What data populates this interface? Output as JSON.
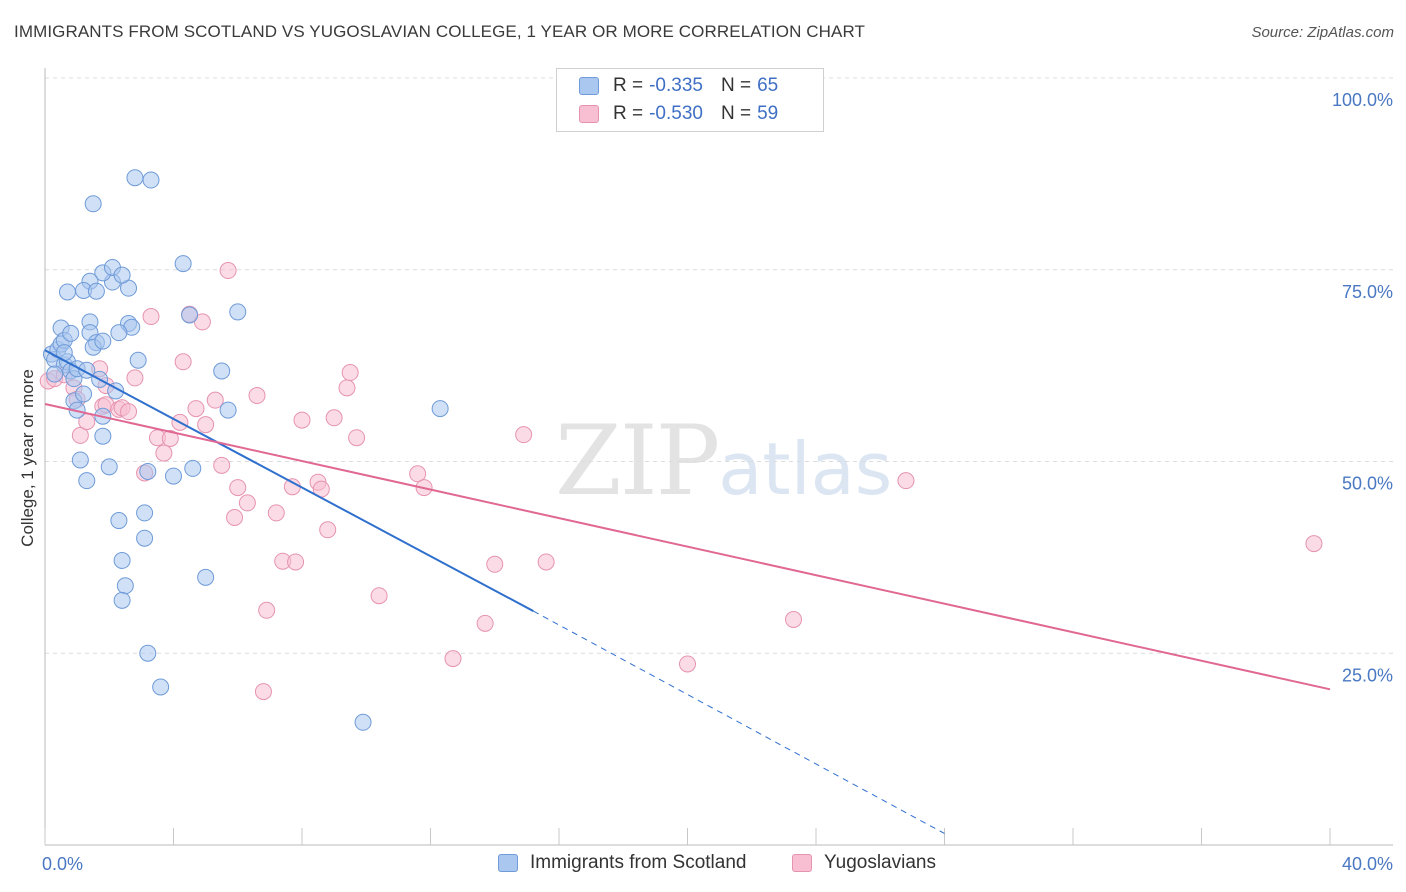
{
  "header": {
    "title": "IMMIGRANTS FROM SCOTLAND VS YUGOSLAVIAN COLLEGE, 1 YEAR OR MORE CORRELATION CHART",
    "source": "Source: ZipAtlas.com"
  },
  "watermark": {
    "zip": "ZIP",
    "atlas": "atlas"
  },
  "legend": {
    "rows": [
      {
        "r_label": "R =",
        "r_value": "-0.335",
        "n_label": "N =",
        "n_value": "65",
        "color": "#a9c7ef",
        "border": "#6f9bd8"
      },
      {
        "r_label": "R =",
        "r_value": "-0.530",
        "n_label": "N =",
        "n_value": "59",
        "color": "#f7bfd1",
        "border": "#e693b0"
      }
    ]
  },
  "bottom_legend": {
    "series1": "Immigrants from Scotland",
    "series2": "Yugoslavians"
  },
  "colors": {
    "blue_fill": "#a9c7ef",
    "blue_stroke": "#6f9bd8",
    "blue_line": "#2f6fce",
    "pink_fill": "#f7bfd1",
    "pink_stroke": "#e693b0",
    "pink_line": "#e06893"
  },
  "chart_data": {
    "type": "scatter",
    "title": "IMMIGRANTS FROM SCOTLAND VS YUGOSLAVIAN COLLEGE, 1 YEAR OR MORE CORRELATION CHART",
    "xlabel": "",
    "ylabel": "College, 1 year or more",
    "xlim": [
      0,
      40
    ],
    "ylim": [
      0,
      100
    ],
    "x_tick_labels": {
      "left": "0.0%",
      "right": "40.0%"
    },
    "y_ticks": [
      {
        "value": 100,
        "label": "100.0%"
      },
      {
        "value": 75,
        "label": "75.0%"
      },
      {
        "value": 50,
        "label": "50.0%"
      },
      {
        "value": 25,
        "label": "25.0%"
      }
    ],
    "grid": true,
    "series": [
      {
        "name": "Immigrants from Scotland",
        "r": -0.335,
        "n": 65,
        "trend": {
          "x0": 0.0,
          "y0": 64.5,
          "x1": 15.2,
          "y1": 30.5,
          "dash_x1": 28.0,
          "dash_y1": 1.5
        },
        "points": [
          [
            0.2,
            64.0
          ],
          [
            0.3,
            63.3
          ],
          [
            0.4,
            64.6
          ],
          [
            0.5,
            65.3
          ],
          [
            0.6,
            62.6
          ],
          [
            0.7,
            63.0
          ],
          [
            0.8,
            61.8
          ],
          [
            0.9,
            60.8
          ],
          [
            0.5,
            67.4
          ],
          [
            0.6,
            65.8
          ],
          [
            0.8,
            66.7
          ],
          [
            1.4,
            68.2
          ],
          [
            1.4,
            66.8
          ],
          [
            1.6,
            65.5
          ],
          [
            1.5,
            64.9
          ],
          [
            1.8,
            65.7
          ],
          [
            1.0,
            62.1
          ],
          [
            1.3,
            61.9
          ],
          [
            0.9,
            57.9
          ],
          [
            1.0,
            56.7
          ],
          [
            1.2,
            58.8
          ],
          [
            1.7,
            60.7
          ],
          [
            1.8,
            55.9
          ],
          [
            1.8,
            53.3
          ],
          [
            2.0,
            49.3
          ],
          [
            1.1,
            50.2
          ],
          [
            1.3,
            47.5
          ],
          [
            2.2,
            59.2
          ],
          [
            2.3,
            42.3
          ],
          [
            2.4,
            37.1
          ],
          [
            2.5,
            33.8
          ],
          [
            2.4,
            31.9
          ],
          [
            3.1,
            43.3
          ],
          [
            3.1,
            40.0
          ],
          [
            3.2,
            25.0
          ],
          [
            3.2,
            48.7
          ],
          [
            3.6,
            20.6
          ],
          [
            4.0,
            48.1
          ],
          [
            4.6,
            49.1
          ],
          [
            5.0,
            34.9
          ],
          [
            5.7,
            56.7
          ],
          [
            5.5,
            61.8
          ],
          [
            4.3,
            75.8
          ],
          [
            4.5,
            69.1
          ],
          [
            6.0,
            69.5
          ],
          [
            2.6,
            68.0
          ],
          [
            2.7,
            67.5
          ],
          [
            2.9,
            63.2
          ],
          [
            2.3,
            66.8
          ],
          [
            2.6,
            72.6
          ],
          [
            2.1,
            73.4
          ],
          [
            1.8,
            74.6
          ],
          [
            1.4,
            73.5
          ],
          [
            1.2,
            72.3
          ],
          [
            2.1,
            75.3
          ],
          [
            2.4,
            74.3
          ],
          [
            1.5,
            83.6
          ],
          [
            2.8,
            87.0
          ],
          [
            3.3,
            86.7
          ],
          [
            0.7,
            72.1
          ],
          [
            1.6,
            72.2
          ],
          [
            12.3,
            56.9
          ],
          [
            9.9,
            16.0
          ],
          [
            0.3,
            61.4
          ],
          [
            0.6,
            64.2
          ]
        ]
      },
      {
        "name": "Yugoslavians",
        "r": -0.53,
        "n": 59,
        "trend": {
          "x0": 0.0,
          "y0": 57.5,
          "x1": 40.0,
          "y1": 20.3
        },
        "points": [
          [
            0.1,
            60.5
          ],
          [
            0.3,
            60.8
          ],
          [
            0.6,
            61.3
          ],
          [
            0.9,
            59.6
          ],
          [
            1.0,
            58.1
          ],
          [
            1.1,
            53.4
          ],
          [
            1.3,
            55.2
          ],
          [
            1.7,
            62.1
          ],
          [
            1.8,
            57.2
          ],
          [
            1.9,
            57.4
          ],
          [
            1.9,
            59.9
          ],
          [
            2.3,
            56.8
          ],
          [
            2.4,
            57.0
          ],
          [
            2.6,
            56.5
          ],
          [
            2.8,
            60.9
          ],
          [
            3.1,
            48.5
          ],
          [
            3.3,
            68.9
          ],
          [
            3.5,
            53.1
          ],
          [
            3.7,
            51.1
          ],
          [
            3.9,
            53.0
          ],
          [
            4.2,
            55.1
          ],
          [
            4.3,
            63.0
          ],
          [
            4.5,
            69.2
          ],
          [
            4.7,
            56.9
          ],
          [
            4.9,
            68.2
          ],
          [
            5.0,
            54.8
          ],
          [
            5.3,
            58.0
          ],
          [
            5.5,
            49.5
          ],
          [
            5.7,
            74.9
          ],
          [
            5.9,
            42.7
          ],
          [
            6.0,
            46.6
          ],
          [
            6.3,
            44.6
          ],
          [
            6.6,
            58.6
          ],
          [
            6.8,
            20.0
          ],
          [
            6.9,
            30.6
          ],
          [
            7.2,
            43.3
          ],
          [
            7.4,
            37.0
          ],
          [
            7.7,
            46.7
          ],
          [
            7.8,
            36.9
          ],
          [
            8.0,
            55.4
          ],
          [
            8.5,
            47.3
          ],
          [
            8.6,
            46.4
          ],
          [
            8.8,
            41.1
          ],
          [
            9.0,
            55.7
          ],
          [
            9.4,
            59.6
          ],
          [
            9.5,
            61.6
          ],
          [
            9.7,
            53.1
          ],
          [
            10.4,
            32.5
          ],
          [
            11.6,
            48.4
          ],
          [
            11.8,
            46.6
          ],
          [
            12.7,
            24.3
          ],
          [
            13.7,
            28.9
          ],
          [
            14.0,
            36.6
          ],
          [
            14.9,
            53.5
          ],
          [
            15.6,
            36.9
          ],
          [
            20.0,
            23.6
          ],
          [
            23.3,
            29.4
          ],
          [
            26.8,
            47.5
          ],
          [
            39.5,
            39.3
          ]
        ]
      }
    ]
  }
}
